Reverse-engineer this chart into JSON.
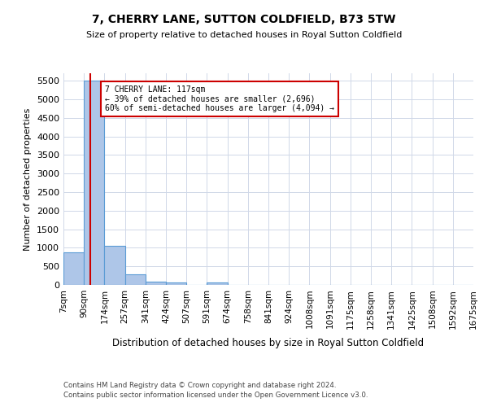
{
  "title": "7, CHERRY LANE, SUTTON COLDFIELD, B73 5TW",
  "subtitle": "Size of property relative to detached houses in Royal Sutton Coldfield",
  "xlabel": "Distribution of detached houses by size in Royal Sutton Coldfield",
  "ylabel": "Number of detached properties",
  "footnote1": "Contains HM Land Registry data © Crown copyright and database right 2024.",
  "footnote2": "Contains public sector information licensed under the Open Government Licence v3.0.",
  "annotation_line1": "7 CHERRY LANE: 117sqm",
  "annotation_line2": "← 39% of detached houses are smaller (2,696)",
  "annotation_line3": "60% of semi-detached houses are larger (4,094) →",
  "property_size": 117,
  "bin_edges": [
    7,
    90,
    174,
    257,
    341,
    424,
    507,
    591,
    674,
    758,
    841,
    924,
    1008,
    1091,
    1175,
    1258,
    1341,
    1425,
    1508,
    1592,
    1675
  ],
  "bar_heights": [
    870,
    5500,
    1060,
    280,
    95,
    75,
    0,
    55,
    0,
    0,
    0,
    0,
    0,
    0,
    0,
    0,
    0,
    0,
    0,
    0
  ],
  "bar_color": "#aec6e8",
  "bar_edge_color": "#5b9bd5",
  "vline_color": "#cc0000",
  "annotation_box_color": "#cc0000",
  "background_color": "#ffffff",
  "grid_color": "#d0d8e8",
  "ylim": [
    0,
    5700
  ],
  "yticks": [
    0,
    500,
    1000,
    1500,
    2000,
    2500,
    3000,
    3500,
    4000,
    4500,
    5000,
    5500
  ],
  "figsize": [
    6.0,
    5.0
  ],
  "dpi": 100
}
